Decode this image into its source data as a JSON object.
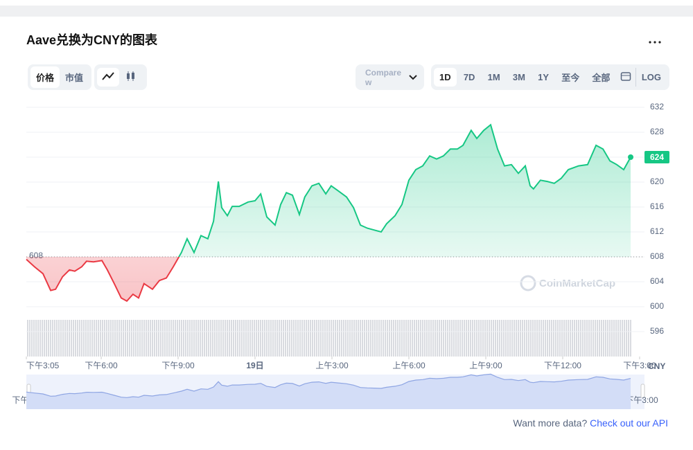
{
  "header": {
    "title": "Aave兑换为CNY的图表"
  },
  "toggles": [
    "价格",
    "市值"
  ],
  "compare": "Compare w",
  "ranges": [
    "1D",
    "7D",
    "1M",
    "3M",
    "1Y",
    "至今",
    "全部"
  ],
  "log": "LOG",
  "footer": {
    "text": "Want more data?",
    "link": "Check out our API"
  },
  "chart_data": {
    "type": "line",
    "watermark": "CoinMarketCap",
    "unit": "CNY",
    "up_color": "#16c784",
    "down_color": "#ea3943",
    "baseline": 608,
    "x": [
      3.08,
      3.4,
      3.73,
      4.03,
      4.22,
      4.49,
      4.76,
      4.97,
      5.24,
      5.43,
      5.7,
      6.03,
      6.24,
      6.51,
      6.78,
      7.0,
      7.24,
      7.46,
      7.67,
      8.0,
      8.27,
      8.54,
      8.81,
      9.13,
      9.35,
      9.62,
      9.89,
      10.16,
      10.38,
      10.57,
      10.7,
      10.92,
      11.11,
      11.38,
      11.73,
      12.0,
      12.22,
      12.46,
      12.78,
      13.0,
      13.22,
      13.46,
      13.73,
      13.94,
      14.22,
      14.49,
      14.76,
      14.97,
      15.24,
      15.57,
      15.84,
      16.11,
      16.38,
      16.65,
      16.92,
      17.13,
      17.46,
      17.73,
      18.0,
      18.27,
      18.54,
      18.81,
      19.08,
      19.35,
      19.62,
      19.89,
      20.11,
      20.43,
      20.65,
      20.92,
      21.19,
      21.46,
      21.73,
      22.0,
      22.27,
      22.54,
      22.73,
      22.86,
      23.13,
      23.4,
      23.67,
      23.94,
      24.22,
      24.62,
      24.97,
      25.3,
      25.57,
      25.84,
      26.11,
      26.38,
      26.65
    ],
    "values": [
      607.6,
      606.4,
      605.3,
      602.6,
      602.8,
      604.8,
      605.9,
      605.7,
      606.4,
      607.3,
      607.2,
      607.4,
      605.9,
      603.7,
      601.4,
      600.9,
      602.0,
      601.4,
      603.7,
      602.8,
      604.2,
      604.6,
      606.4,
      608.7,
      610.9,
      608.7,
      611.4,
      610.9,
      613.7,
      620.1,
      615.9,
      614.6,
      616.1,
      616.1,
      616.8,
      617.0,
      618.1,
      614.4,
      613.1,
      616.4,
      618.3,
      617.9,
      614.8,
      617.6,
      619.4,
      619.8,
      618.1,
      619.4,
      618.6,
      617.6,
      615.9,
      613.1,
      612.6,
      612.3,
      612.0,
      613.3,
      614.6,
      616.4,
      620.3,
      622.0,
      622.6,
      624.2,
      623.7,
      624.2,
      625.3,
      625.3,
      625.9,
      628.3,
      627.0,
      628.3,
      629.2,
      625.3,
      622.6,
      622.8,
      621.4,
      622.6,
      619.4,
      618.9,
      620.3,
      620.1,
      619.8,
      620.6,
      622.0,
      622.6,
      622.8,
      625.9,
      625.3,
      623.4,
      622.8,
      622.0,
      624
    ],
    "xlim": [
      3.08,
      27.19
    ],
    "xticks": [
      {
        "value": 3.08,
        "label": "下午3:05"
      },
      {
        "value": 6,
        "label": "下午6:00"
      },
      {
        "value": 9,
        "label": "下午9:00"
      },
      {
        "value": 12,
        "label": "19日"
      },
      {
        "value": 15,
        "label": "上午3:00"
      },
      {
        "value": 18,
        "label": "上午6:00"
      },
      {
        "value": 21,
        "label": "上午9:00"
      },
      {
        "value": 24,
        "label": "下午12:00"
      },
      {
        "value": 27,
        "label": "下午3:00"
      }
    ],
    "ylim": [
      592,
      632
    ],
    "yticks": [
      596,
      600,
      604,
      608,
      612,
      616,
      620,
      624,
      628,
      632
    ]
  }
}
